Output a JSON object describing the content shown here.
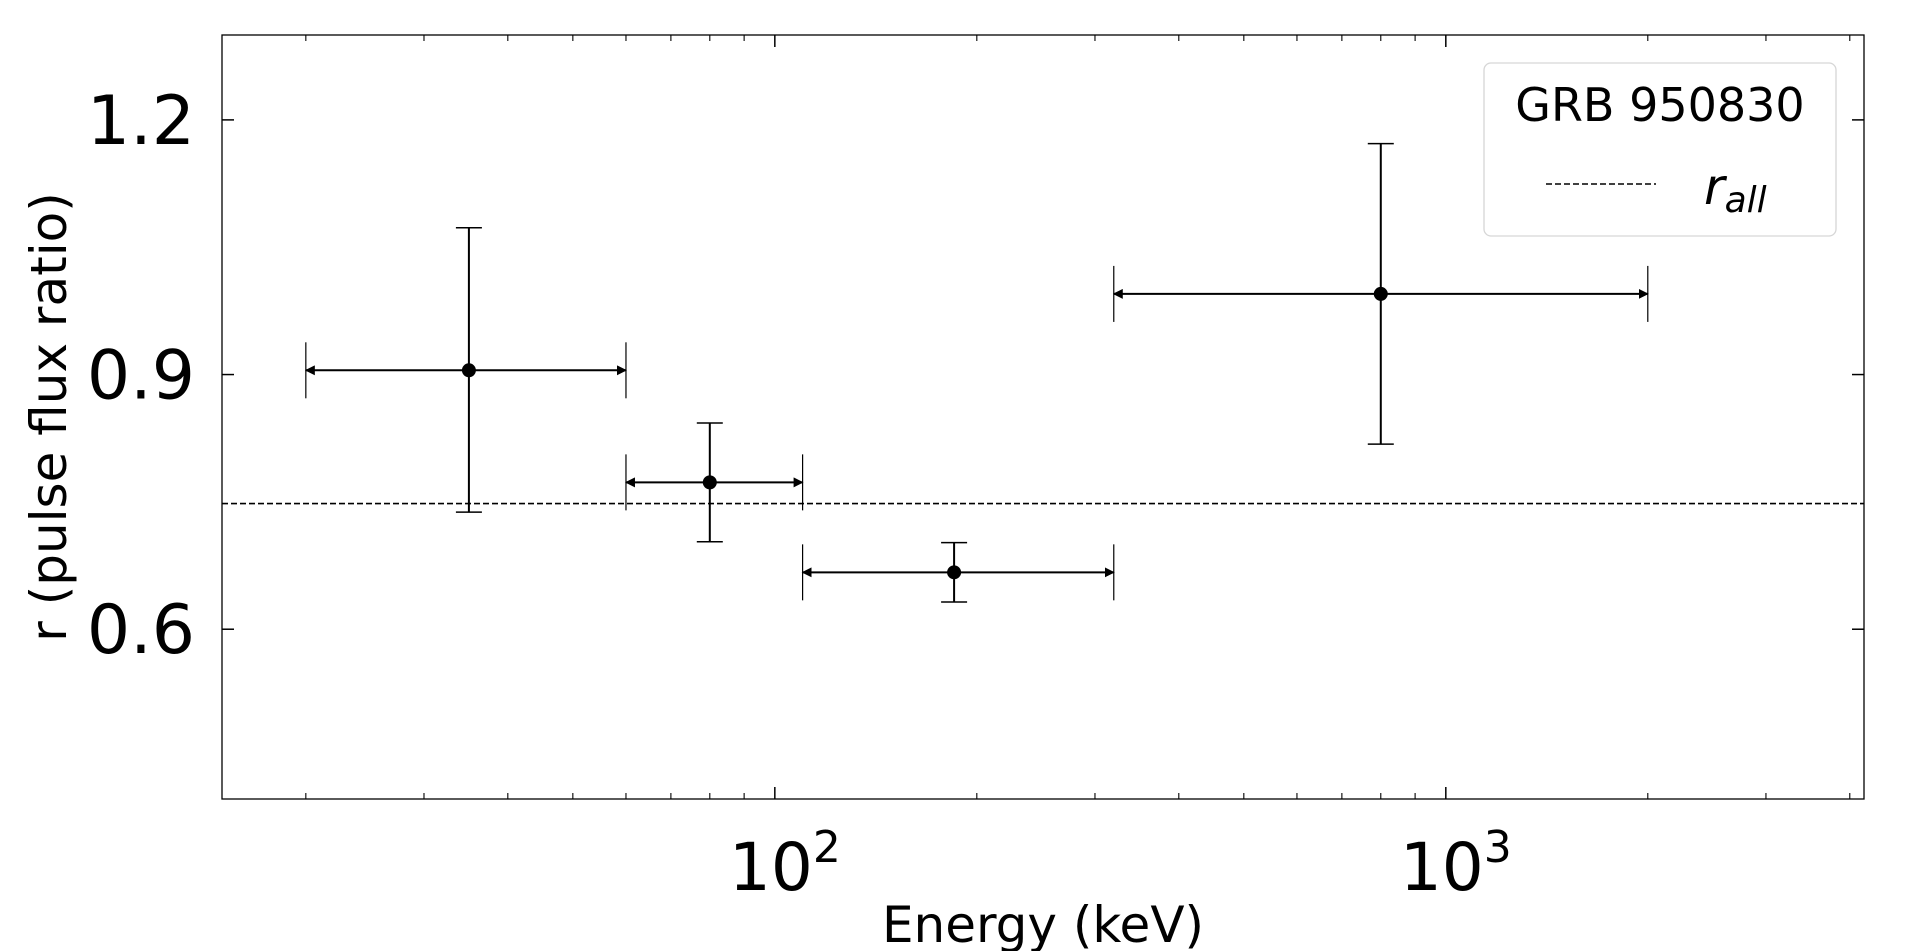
{
  "chart_data": {
    "type": "scatter",
    "title": "",
    "xlabel": "Energy (keV)",
    "ylabel": "r (pulse flux ratio)",
    "xscale": "log",
    "xlim": [
      15,
      4200
    ],
    "ylim": [
      0.4,
      1.3
    ],
    "y_ticks": [
      {
        "value": 0.6,
        "label": "0.6"
      },
      {
        "value": 0.9,
        "label": "0.9"
      },
      {
        "value": 1.2,
        "label": "1.2"
      }
    ],
    "x_major_ticks": [
      {
        "value": 100,
        "base": "10",
        "exp": "2"
      },
      {
        "value": 1000,
        "base": "10",
        "exp": "3"
      }
    ],
    "x_minor_ticks": [
      20,
      30,
      40,
      50,
      60,
      70,
      80,
      90,
      200,
      300,
      400,
      500,
      600,
      700,
      800,
      900,
      2000,
      3000,
      4000
    ],
    "series": [
      {
        "name": "GRB 950830",
        "points": [
          {
            "x": 35,
            "x_low": 20,
            "x_high": 60,
            "y": 0.905,
            "y_low": 0.738,
            "y_high": 1.073
          },
          {
            "x": 80,
            "x_low": 60,
            "x_high": 110,
            "y": 0.773,
            "y_low": 0.703,
            "y_high": 0.843
          },
          {
            "x": 185,
            "x_low": 110,
            "x_high": 320,
            "y": 0.667,
            "y_low": 0.632,
            "y_high": 0.702
          },
          {
            "x": 800,
            "x_low": 320,
            "x_high": 2000,
            "y": 0.995,
            "y_low": 0.818,
            "y_high": 1.172
          }
        ]
      }
    ],
    "reference_line": {
      "name": "r_all",
      "y": 0.748,
      "style": "dashed"
    },
    "legend": {
      "title": "GRB 950830",
      "entry_base": "r",
      "entry_sub": "all",
      "position": "top-right"
    },
    "grid": false
  }
}
